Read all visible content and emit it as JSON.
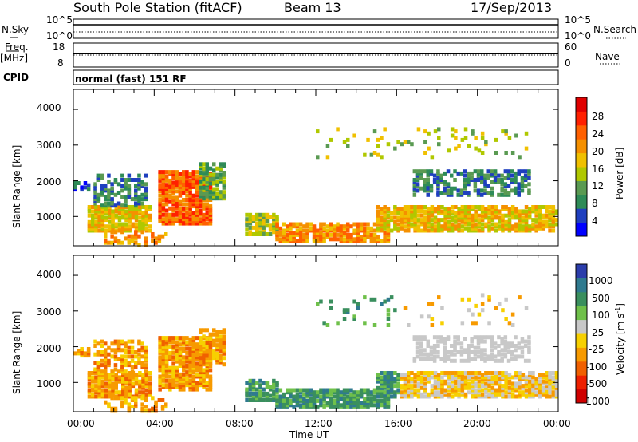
{
  "header": {
    "station": "South Pole Station (fitACF)",
    "beam": "Beam 13",
    "date": "17/Sep/2013"
  },
  "noise_panel": {
    "left_label": "N.Sky",
    "right_label": "N.Search",
    "left_ticks": [
      "10^5",
      "10^0"
    ],
    "right_ticks": [
      "10^5",
      "10^0"
    ]
  },
  "freq_panel": {
    "left_label_1": "Freq.",
    "left_label_2": "[MHz]",
    "right_label": "Nave",
    "left_ticks": [
      "18",
      "8"
    ],
    "right_ticks": [
      "60",
      "0"
    ]
  },
  "cpid_panel": {
    "label": "CPID",
    "mode": "normal (fast) 151 RF"
  },
  "chart_data": [
    {
      "type": "heatmap",
      "name": "power",
      "ylabel": "Slant Range [km]",
      "ylim": [
        180,
        4560
      ],
      "yticks": [
        "1000",
        "2000",
        "3000",
        "4000"
      ],
      "ytick_values": [
        1000,
        2000,
        3000,
        4000
      ],
      "colorbar_label": "Power [dB]",
      "colorbar_ticks": [
        "4",
        "8",
        "12",
        "16",
        "20",
        "24",
        "28"
      ],
      "colors": [
        "#0000ff",
        "#1f3fbf",
        "#2e8b57",
        "#5a9a52",
        "#b0c800",
        "#f0c000",
        "#f59000",
        "#ff6000",
        "#ff2000",
        "#e00000"
      ]
    },
    {
      "type": "heatmap",
      "name": "velocity",
      "ylabel": "Slant Range [km]",
      "xlabel": "Time UT",
      "ylim": [
        180,
        4560
      ],
      "yticks": [
        "1000",
        "2000",
        "3000",
        "4000"
      ],
      "ytick_values": [
        1000,
        2000,
        3000,
        4000
      ],
      "xticks": [
        "00:00",
        "04:00",
        "08:00",
        "12:00",
        "16:00",
        "20:00",
        "00:00"
      ],
      "colorbar_label": "Velocity [m s",
      "colorbar_unit_sup": "-1",
      "colorbar_unit_close": "]",
      "colorbar_ticks": [
        "1000",
        "500",
        "100",
        "25",
        "-25",
        "-100",
        "-500",
        "-1000"
      ],
      "colors": [
        "#2b3dab",
        "#2f7a8f",
        "#3a8f5e",
        "#6fc04a",
        "#c8c8c8",
        "#f7d000",
        "#f79a00",
        "#f06000",
        "#ee2000",
        "#d00000"
      ]
    }
  ]
}
